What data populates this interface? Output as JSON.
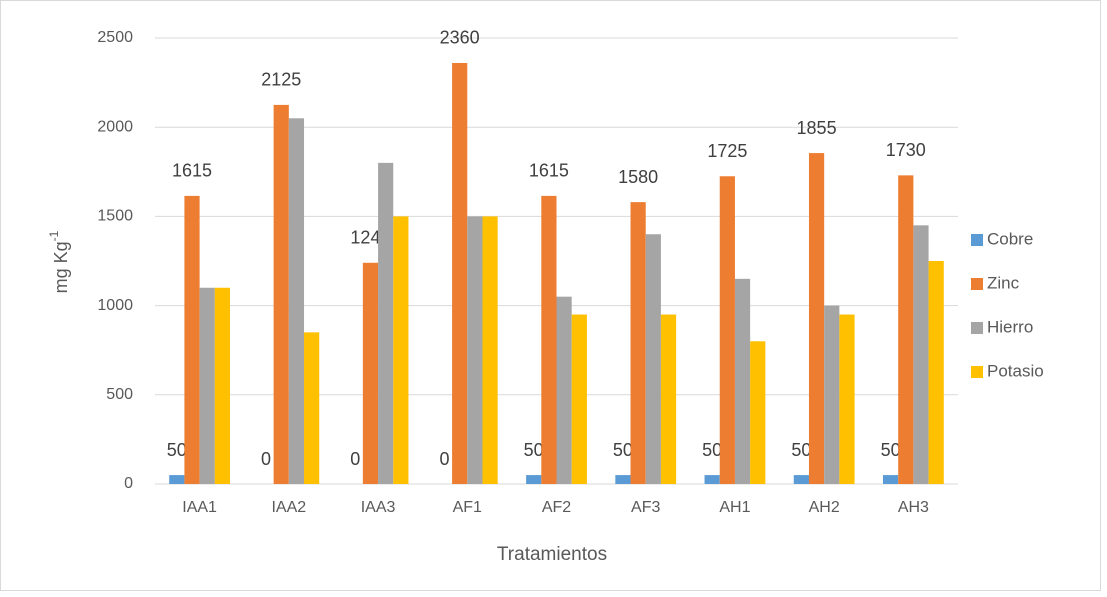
{
  "chart_data": {
    "type": "bar",
    "xlabel": "Tratamientos",
    "ylabel": "mg Kg",
    "ylabel_superscript": "-1",
    "categories": [
      "IAA1",
      "IAA2",
      "IAA3",
      "AF1",
      "AF2",
      "AF3",
      "AH1",
      "AH2",
      "AH3"
    ],
    "series": [
      {
        "name": "Cobre",
        "color": "#5b9bd5",
        "data_labels": true,
        "values": [
          50,
          0,
          0,
          0,
          50,
          50,
          50,
          50,
          50
        ]
      },
      {
        "name": "Zinc",
        "color": "#ed7d31",
        "data_labels": true,
        "values": [
          1615,
          2125,
          1240,
          2360,
          1615,
          1580,
          1725,
          1855,
          1730
        ]
      },
      {
        "name": "Hierro",
        "color": "#a5a5a5",
        "data_labels": false,
        "values": [
          1100,
          2050,
          1800,
          1500,
          1050,
          1400,
          1150,
          1000,
          1450
        ]
      },
      {
        "name": "Potasio",
        "color": "#ffc000",
        "data_labels": false,
        "values": [
          1100,
          850,
          1500,
          1500,
          950,
          950,
          800,
          950,
          1250
        ]
      }
    ],
    "ylim": [
      0,
      2500
    ],
    "yticks": [
      0,
      500,
      1000,
      1500,
      2000,
      2500
    ],
    "grid": true,
    "legend": "right"
  }
}
